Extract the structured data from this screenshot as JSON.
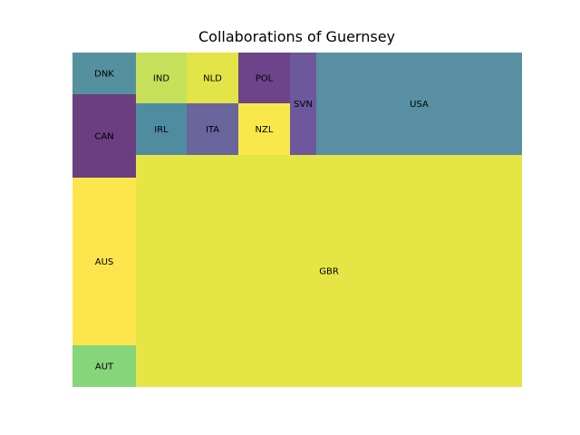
{
  "chart_data": {
    "type": "treemap",
    "title": "Collaborations of Guernsey",
    "tiles": [
      {
        "label": "DNK",
        "value": 2,
        "color": "#55909F"
      },
      {
        "label": "CAN",
        "value": 4,
        "color": "#6B3D81"
      },
      {
        "label": "AUS",
        "value": 8,
        "color": "#FCE54C"
      },
      {
        "label": "AUT",
        "value": 2,
        "color": "#86D57A"
      },
      {
        "label": "IND",
        "value": 1,
        "color": "#C6E05A"
      },
      {
        "label": "NLD",
        "value": 1,
        "color": "#E2E448"
      },
      {
        "label": "POL",
        "value": 1,
        "color": "#6D4489"
      },
      {
        "label": "IRL",
        "value": 1,
        "color": "#4F8CA0"
      },
      {
        "label": "ITA",
        "value": 1,
        "color": "#6A659D"
      },
      {
        "label": "NZL",
        "value": 1,
        "color": "#F9E84C"
      },
      {
        "label": "SVN",
        "value": 1,
        "color": "#6C589B"
      },
      {
        "label": "USA",
        "value": 8,
        "color": "#588FA3"
      },
      {
        "label": "GBR",
        "value": 60,
        "color": "#E5E646"
      }
    ]
  }
}
